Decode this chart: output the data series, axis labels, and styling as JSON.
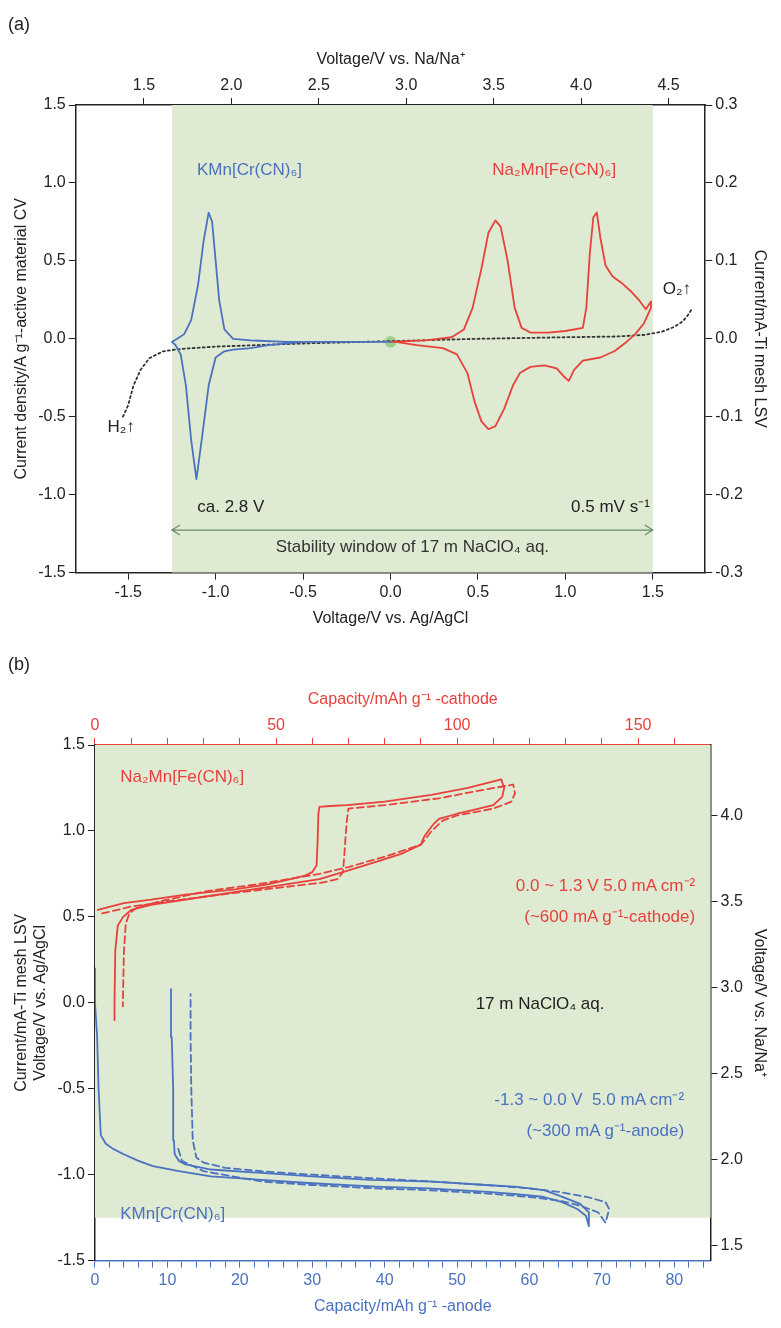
{
  "chart_data": [
    {
      "type": "line",
      "title": "(a)",
      "xlabel": "Voltage/V vs. Ag/AgCl",
      "x2label": "Voltage/V vs. Na/Na⁺",
      "ylabel": "Current density/A g⁻¹-active material CV",
      "y2label": "Current/mA-Ti mesh LSV",
      "xlim": [
        -1.8,
        1.8
      ],
      "xticks": [
        -1.5,
        {
          "value": -1,
          "label": "-1.0"
        },
        -0.5,
        {
          "value": 0,
          "label": "0.0"
        },
        0.5,
        {
          "value": 1,
          "label": "1.0"
        },
        1.5
      ],
      "x2lim": [
        1.11,
        4.71
      ],
      "x2ticks": [
        1.5,
        {
          "value": 2,
          "label": "2.0"
        },
        2.5,
        {
          "value": 3,
          "label": "3.0"
        },
        3.5,
        {
          "value": 4,
          "label": "4.0"
        },
        4.5
      ],
      "ylim": [
        -1.5,
        1.5
      ],
      "yticks": [
        -1.5,
        {
          "value": -1,
          "label": "-1.0"
        },
        -0.5,
        {
          "value": 0,
          "label": "0.0"
        },
        0.5,
        {
          "value": 1,
          "label": "1.0"
        },
        1.5
      ],
      "y2lim": [
        -0.3,
        0.3
      ],
      "y2ticks": [
        -0.3,
        -0.2,
        -0.1,
        {
          "value": 0,
          "label": "0.0"
        },
        0.1,
        0.2,
        0.3
      ],
      "grid": false,
      "legend": false,
      "marker": "none",
      "bands": [
        {
          "axis": "x",
          "from": -1.25,
          "to": 1.5,
          "label": "Stability window of 17 m NaClO₄ aq.",
          "color": "#dfead2"
        }
      ],
      "annotations": [
        "ca. 2.8 V",
        "0.5 mV s⁻¹",
        "H₂↑",
        "O₂↑"
      ],
      "series": [
        {
          "name": "KMn[Cr(CN)₆]",
          "color": "#4a72c0",
          "line_style": "solid",
          "x": [
            0,
            -0.3,
            -0.5,
            -0.7,
            -0.8,
            -0.9,
            -0.95,
            -1.0,
            -1.04,
            -1.08,
            -1.11,
            -1.14,
            -1.17,
            -1.2,
            -1.23,
            -1.25,
            -1.22,
            -1.18,
            -1.14,
            -1.1,
            -1.07,
            -1.04,
            -1.02,
            -1.0,
            -0.98,
            -0.95,
            -0.9,
            -0.8,
            -0.6,
            -0.3,
            -0.03
          ],
          "values": [
            -0.02,
            -0.02,
            -0.02,
            -0.04,
            -0.06,
            -0.07,
            -0.08,
            -0.12,
            -0.3,
            -0.65,
            -0.9,
            -0.65,
            -0.3,
            -0.1,
            -0.04,
            -0.02,
            0.0,
            0.03,
            0.12,
            0.35,
            0.62,
            0.81,
            0.75,
            0.5,
            0.25,
            0.06,
            0.0,
            -0.01,
            -0.02,
            -0.02,
            -0.02
          ]
        },
        {
          "name": "Na₂Mn[Fe(CN)₆]",
          "color": "#e8413c",
          "line_style": "solid",
          "x": [
            0,
            0.2,
            0.35,
            0.42,
            0.47,
            0.52,
            0.56,
            0.6,
            0.63,
            0.67,
            0.71,
            0.75,
            0.8,
            0.9,
            1.0,
            1.1,
            1.12,
            1.14,
            1.16,
            1.18,
            1.2,
            1.23,
            1.27,
            1.32,
            1.37,
            1.42,
            1.46,
            1.49,
            1.49,
            1.45,
            1.4,
            1.35,
            1.28,
            1.2,
            1.1,
            1.05,
            1.02,
            0.99,
            0.95,
            0.88,
            0.8,
            0.74,
            0.7,
            0.65,
            0.6,
            0.56,
            0.52,
            0.48,
            0.44,
            0.38,
            0.3,
            0.15,
            0.03
          ],
          "values": [
            -0.02,
            -0.01,
            0.01,
            0.06,
            0.2,
            0.45,
            0.68,
            0.76,
            0.72,
            0.5,
            0.2,
            0.07,
            0.04,
            0.04,
            0.05,
            0.07,
            0.2,
            0.55,
            0.78,
            0.81,
            0.65,
            0.47,
            0.4,
            0.36,
            0.31,
            0.25,
            0.19,
            0.24,
            0.2,
            0.1,
            0.03,
            -0.02,
            -0.08,
            -0.12,
            -0.14,
            -0.2,
            -0.27,
            -0.24,
            -0.19,
            -0.17,
            -0.18,
            -0.22,
            -0.3,
            -0.45,
            -0.56,
            -0.58,
            -0.53,
            -0.4,
            -0.22,
            -0.1,
            -0.06,
            -0.04,
            -0.02
          ]
        },
        {
          "color": "#333333",
          "axis": "y2",
          "line_style": "dotted",
          "x": [
            -1.53,
            -1.5,
            -1.47,
            -1.43,
            -1.38,
            -1.3,
            -1.2,
            -1.0,
            -0.5,
            0,
            0.5,
            1.0,
            1.3,
            1.45,
            1.55,
            1.62,
            1.67,
            1.7,
            1.72
          ],
          "values": [
            -0.1,
            -0.085,
            -0.06,
            -0.04,
            -0.025,
            -0.016,
            -0.013,
            -0.01,
            -0.006,
            -0.003,
            0,
            0.002,
            0.003,
            0.005,
            0.009,
            0.015,
            0.022,
            0.03,
            0.037
          ]
        },
        {
          "type": "scatter",
          "marker": "circle",
          "color": "#9fd08a",
          "x": [
            0
          ],
          "values": [
            -0.02
          ]
        }
      ]
    },
    {
      "type": "line",
      "title": "(b)",
      "xlabel": "Capacity/mAh g⁻¹ -anode",
      "x2label": "Capacity/mAh g⁻¹ -cathode",
      "ylabel": "Current/mA-Ti mesh LSV\nVoltage/V vs. Ag/AgCl",
      "y2label": "Voltage/V vs. Na/Na⁺",
      "xlim": [
        0,
        85
      ],
      "xticks": [
        0,
        {
          "value": 2,
          "label": null
        },
        {
          "value": 4,
          "label": null
        },
        {
          "value": 6,
          "label": null
        },
        {
          "value": 8,
          "label": null
        },
        10,
        {
          "value": 12,
          "label": null
        },
        {
          "value": 14,
          "label": null
        },
        {
          "value": 16,
          "label": null
        },
        {
          "value": 18,
          "label": null
        },
        20,
        {
          "value": 22,
          "label": null
        },
        {
          "value": 24,
          "label": null
        },
        {
          "value": 26,
          "label": null
        },
        {
          "value": 28,
          "label": null
        },
        30,
        {
          "value": 32,
          "label": null
        },
        {
          "value": 34,
          "label": null
        },
        {
          "value": 36,
          "label": null
        },
        {
          "value": 38,
          "label": null
        },
        40,
        {
          "value": 42,
          "label": null
        },
        {
          "value": 44,
          "label": null
        },
        {
          "value": 46,
          "label": null
        },
        {
          "value": 48,
          "label": null
        },
        50,
        {
          "value": 52,
          "label": null
        },
        {
          "value": 54,
          "label": null
        },
        {
          "value": 56,
          "label": null
        },
        {
          "value": 58,
          "label": null
        },
        60,
        {
          "value": 62,
          "label": null
        },
        {
          "value": 64,
          "label": null
        },
        {
          "value": 66,
          "label": null
        },
        {
          "value": 68,
          "label": null
        },
        70,
        {
          "value": 72,
          "label": null
        },
        {
          "value": 74,
          "label": null
        },
        {
          "value": 76,
          "label": null
        },
        {
          "value": 78,
          "label": null
        },
        80,
        {
          "value": 82,
          "label": null
        },
        {
          "value": 84,
          "label": null
        }
      ],
      "x2lim": [
        0,
        170
      ],
      "x2ticks": [
        0,
        {
          "value": 10,
          "label": null
        },
        {
          "value": 20,
          "label": null
        },
        {
          "value": 30,
          "label": null
        },
        {
          "value": 40,
          "label": null
        },
        50,
        {
          "value": 60,
          "label": null
        },
        {
          "value": 70,
          "label": null
        },
        {
          "value": 80,
          "label": null
        },
        {
          "value": 90,
          "label": null
        },
        100,
        {
          "value": 110,
          "label": null
        },
        {
          "value": 120,
          "label": null
        },
        {
          "value": 130,
          "label": null
        },
        {
          "value": 140,
          "label": null
        },
        150,
        {
          "value": 160,
          "label": null
        }
      ],
      "ylim": [
        -1.5,
        1.5
      ],
      "yticks": [
        -1.5,
        {
          "value": -1,
          "label": "-1.0"
        },
        -0.5,
        {
          "value": 0,
          "label": "0.0"
        },
        0.5,
        {
          "value": 1,
          "label": "1.0"
        },
        1.5
      ],
      "y2lim": [
        1.41,
        4.41
      ],
      "y2ticks": [
        1.5,
        {
          "value": 2,
          "label": "2.0"
        },
        2.5,
        {
          "value": 3,
          "label": "3.0"
        },
        3.5,
        {
          "value": 4,
          "label": "4.0"
        }
      ],
      "grid": false,
      "legend": false,
      "marker": "none",
      "bands": [
        {
          "axis": "y",
          "from": -1.25,
          "to": 1.5,
          "color": "#dfead2"
        }
      ],
      "annotations": [
        "0.0 ~ 1.3 V 5.0 mA cm⁻²",
        "(~600 mA g⁻¹-cathode)",
        "17 m NaClO₄ aq.",
        "-1.3 ~ 0.0 V  5.0 mA cm⁻²",
        "(~300 mA g⁻¹-anode)"
      ],
      "series": [
        {
          "name": "Na₂Mn[Fe(CN)₆]",
          "color": "#e8413c",
          "axis": "x2",
          "line_style": "solid",
          "x": [
            0.8,
            8,
            15.5,
            25,
            38.7,
            48,
            54,
            58,
            60,
            61.2,
            61.5,
            61.7,
            62,
            65,
            69.7,
            80,
            92.9,
            103,
            112.2,
            113,
            112.5,
            110,
            104,
            100,
            95,
            93.5,
            91,
            90,
            85,
            77.6,
            70,
            62,
            50,
            31,
            15.5,
            10,
            7.8,
            6.3,
            5.6,
            5.4,
            5.4
          ],
          "values": [
            0.54,
            0.58,
            0.6,
            0.63,
            0.66,
            0.69,
            0.72,
            0.74,
            0.76,
            0.8,
            0.95,
            1.1,
            1.14,
            1.145,
            1.15,
            1.17,
            1.21,
            1.25,
            1.3,
            1.25,
            1.2,
            1.15,
            1.12,
            1.1,
            1.07,
            1.04,
            0.97,
            0.92,
            0.87,
            0.82,
            0.77,
            0.72,
            0.68,
            0.62,
            0.57,
            0.54,
            0.5,
            0.45,
            0.3,
            0.0,
            -0.1
          ]
        },
        {
          "color": "#e8413c",
          "axis": "x2",
          "line_style": "dashed",
          "x": [
            2,
            10,
            20,
            38.7,
            55,
            63,
            67,
            68.5,
            69,
            69.5,
            70,
            75,
            80,
            95,
            105,
            115.5,
            116,
            115,
            110,
            100,
            96,
            93,
            90,
            80,
            70,
            62,
            45,
            31,
            20,
            12,
            9.5,
            8.5,
            8,
            7.8,
            7.7
          ],
          "values": [
            0.52,
            0.56,
            0.59,
            0.64,
            0.68,
            0.7,
            0.72,
            0.76,
            0.9,
            1.05,
            1.13,
            1.14,
            1.15,
            1.19,
            1.23,
            1.27,
            1.22,
            1.17,
            1.13,
            1.09,
            1.06,
            1.0,
            0.92,
            0.85,
            0.79,
            0.75,
            0.69,
            0.65,
            0.6,
            0.56,
            0.52,
            0.46,
            0.3,
            0.1,
            -0.02
          ]
        },
        {
          "name": "KMn[Cr(CN)₆]",
          "color": "#4a72c0",
          "line_style": "solid",
          "x": [
            0,
            0,
            0.3,
            0.5,
            0.8,
            1.5,
            2.5,
            3.9,
            6,
            8,
            11.6,
            16,
            23,
            30,
            38.8,
            46,
            54.3,
            60,
            62,
            64.5,
            66.6,
            67.8,
            68.2,
            68.2,
            67,
            64,
            62,
            58,
            54,
            46.6,
            38,
            30,
            23,
            16,
            12.5,
            11.6,
            11,
            10.9,
            10.8,
            10.6,
            10.5
          ],
          "values": [
            0.2,
            0.0,
            -0.2,
            -0.5,
            -0.77,
            -0.82,
            -0.85,
            -0.88,
            -0.92,
            -0.95,
            -0.98,
            -1.01,
            -1.03,
            -1.05,
            -1.07,
            -1.08,
            -1.1,
            -1.12,
            -1.13,
            -1.16,
            -1.2,
            -1.24,
            -1.3,
            -1.22,
            -1.17,
            -1.12,
            -1.09,
            -1.07,
            -1.06,
            -1.04,
            -1.03,
            -1.01,
            -0.99,
            -0.97,
            -0.94,
            -0.92,
            -0.88,
            -0.8,
            -0.5,
            -0.2,
            0.08
          ]
        },
        {
          "color": "#4a72c0",
          "line_style": "dashed",
          "x": [
            11.5,
            12,
            15,
            23,
            30,
            38.8,
            46,
            54.3,
            60,
            64,
            67,
            69.5,
            70.5,
            71,
            70.5,
            68,
            64,
            60,
            54,
            46.6,
            38,
            30,
            23,
            18,
            15,
            14,
            13.5,
            13.3,
            13.2,
            13.2
          ],
          "values": [
            -0.85,
            -0.92,
            -0.98,
            -1.04,
            -1.06,
            -1.08,
            -1.09,
            -1.11,
            -1.13,
            -1.15,
            -1.18,
            -1.22,
            -1.28,
            -1.2,
            -1.16,
            -1.13,
            -1.1,
            -1.08,
            -1.06,
            -1.04,
            -1.02,
            -1.0,
            -0.98,
            -0.96,
            -0.93,
            -0.9,
            -0.8,
            -0.5,
            -0.2,
            0.05
          ]
        }
      ]
    }
  ]
}
